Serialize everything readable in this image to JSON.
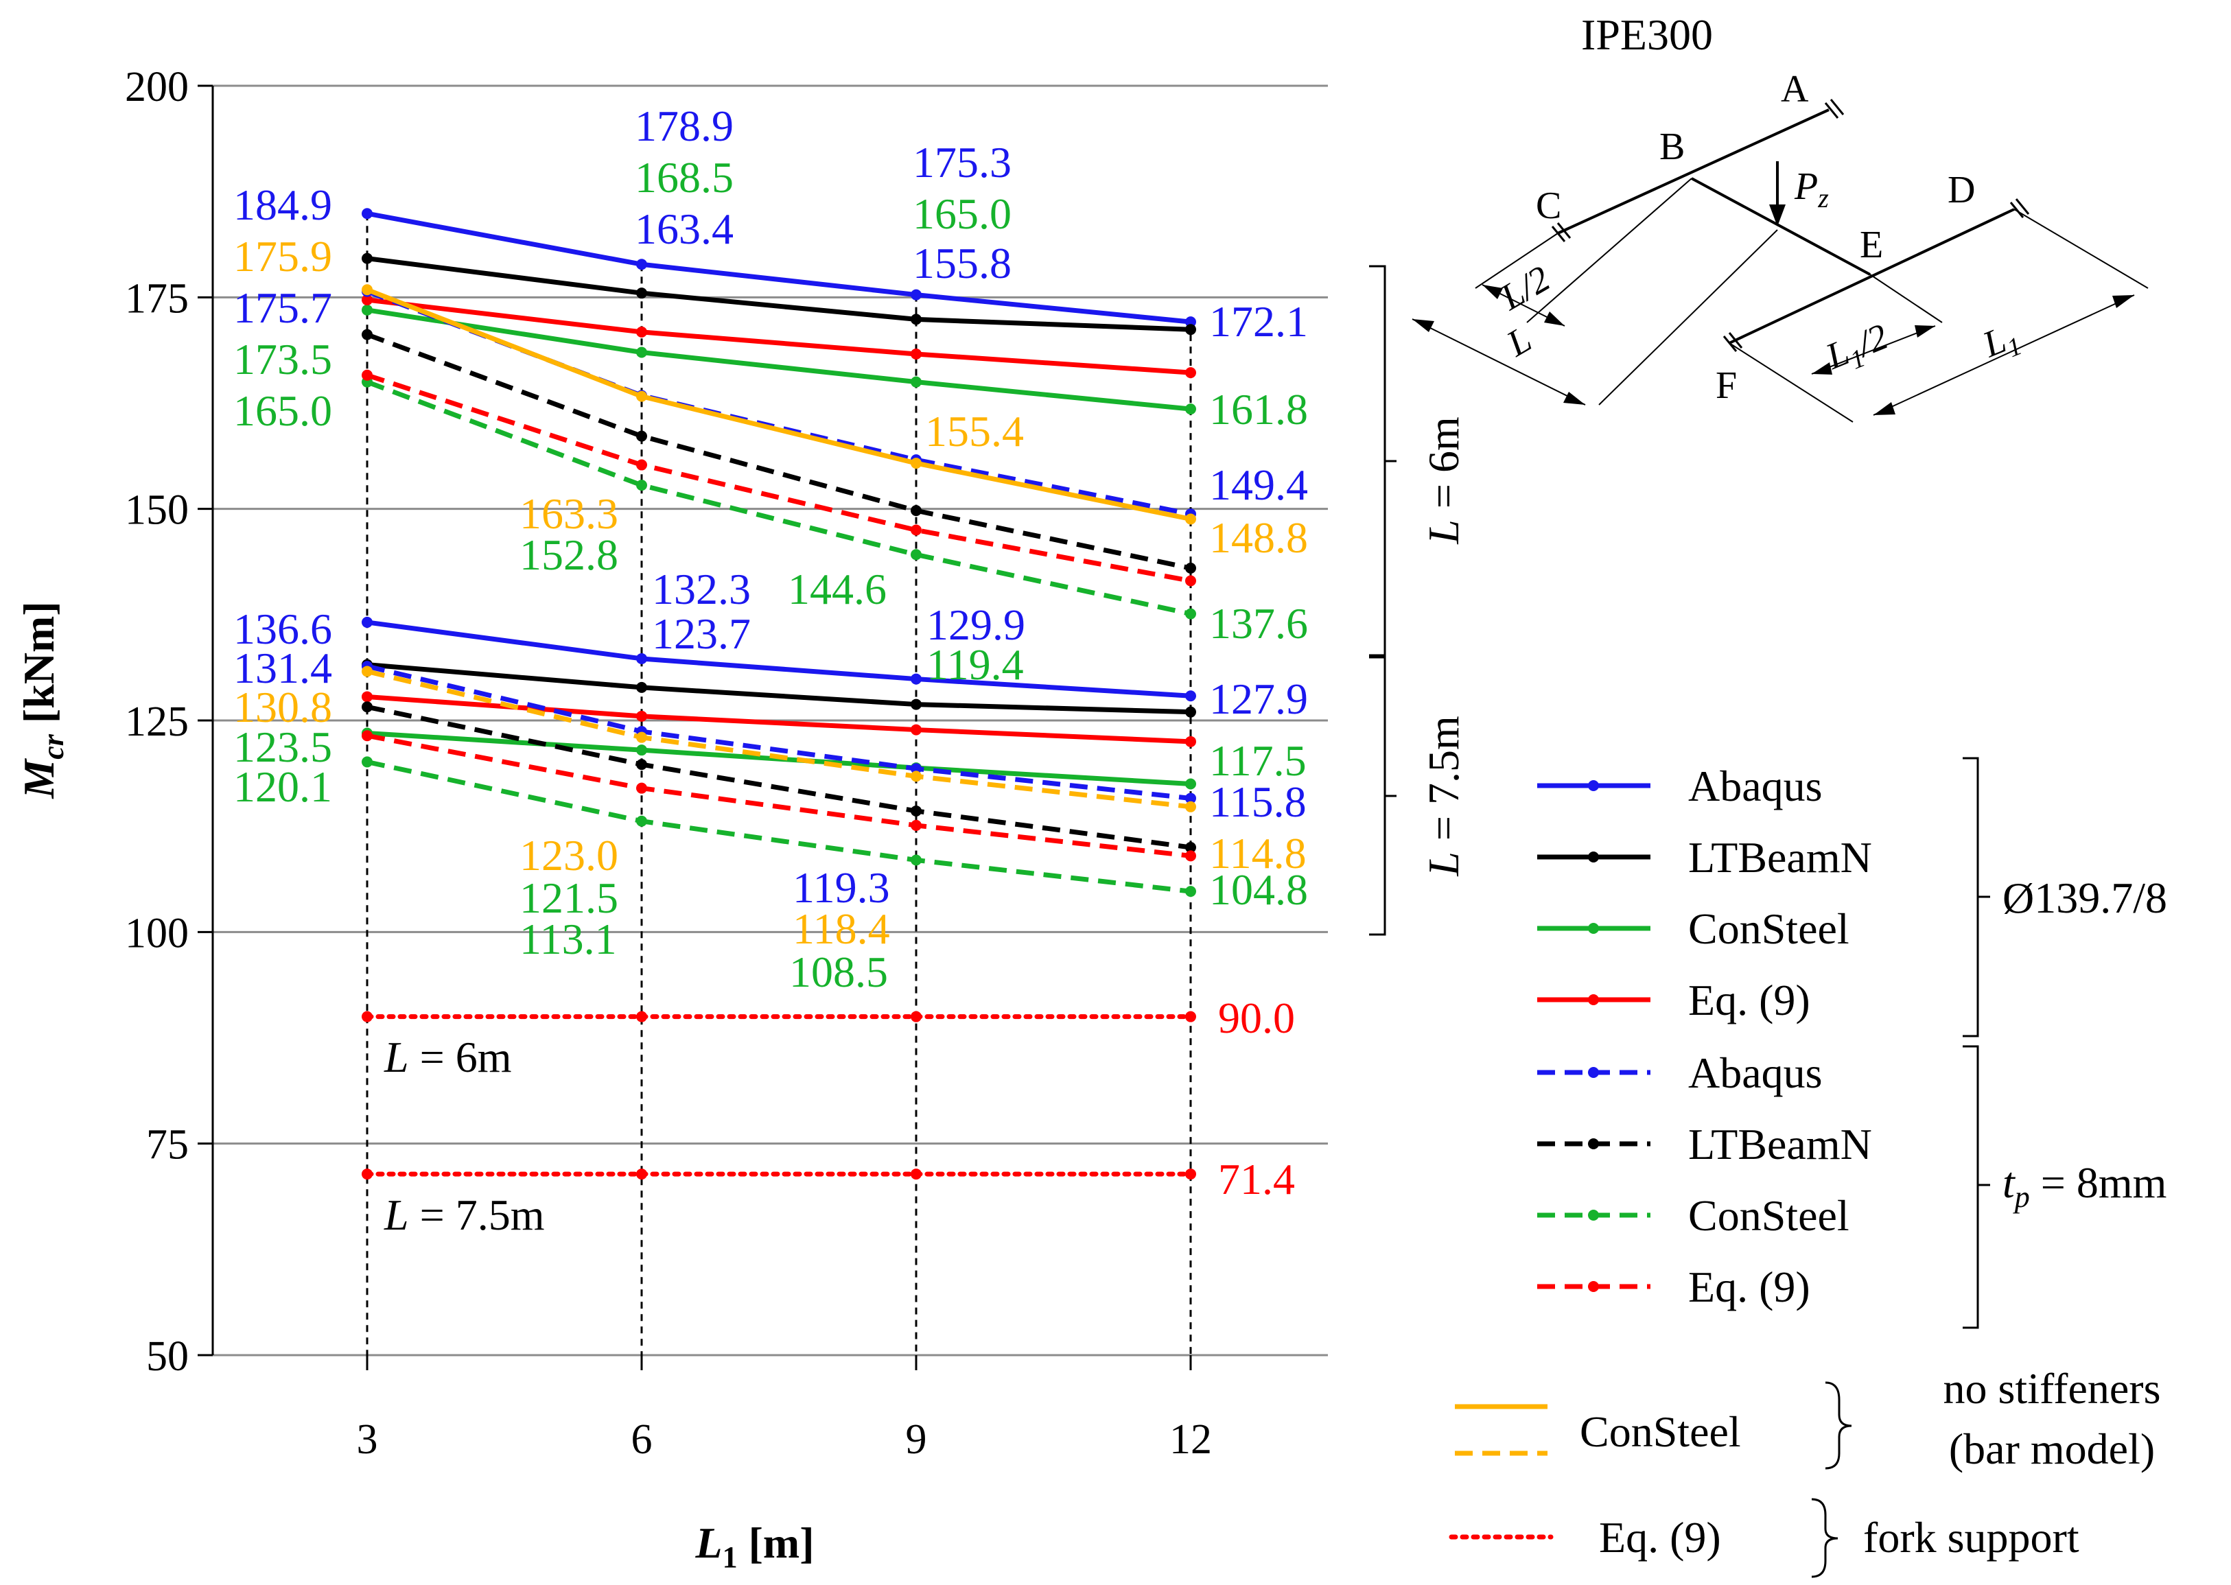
{
  "chart_data": {
    "type": "line",
    "ylabel_main": "M",
    "ylabel_sub": "cr",
    "ylabel_unit": "[kNm]",
    "xlabel_main": "L",
    "xlabel_sub": "1",
    "xlabel_unit": "[m]",
    "categories": [
      3,
      6,
      9,
      12
    ],
    "x_tick_labels": [
      "3",
      "6",
      "9",
      "12"
    ],
    "ylim": [
      50,
      200
    ],
    "y_ticks": [
      50,
      75,
      100,
      125,
      150,
      175,
      200
    ],
    "y_tick_labels": [
      "50",
      "75",
      "100",
      "125",
      "150",
      "175",
      "200"
    ],
    "grid": true,
    "colors": {
      "abaqus": "#1a17ee",
      "ltbeam": "#000000",
      "consteel": "#16b22c",
      "eq9": "#ff0000",
      "consteel_bar": "#ffb300"
    },
    "series": [
      {
        "name": "Abaqus Ø139.7/8 L=6m",
        "method": "abaqus",
        "style": "solid",
        "values": [
          184.9,
          178.9,
          175.3,
          172.1
        ]
      },
      {
        "name": "LTBeamN Ø139.7/8 L=6m",
        "method": "ltbeam",
        "style": "solid",
        "values": [
          179.6,
          175.5,
          172.4,
          171.2
        ]
      },
      {
        "name": "ConSteel Ø139.7/8 L=6m",
        "method": "consteel",
        "style": "solid",
        "values": [
          173.5,
          168.5,
          165.0,
          161.8
        ]
      },
      {
        "name": "Eq. (9) Ø139.7/8 L=6m",
        "method": "eq9",
        "style": "solid",
        "values": [
          174.7,
          170.9,
          168.3,
          166.1
        ]
      },
      {
        "name": "Abaqus tp=8mm L=6m",
        "method": "abaqus",
        "style": "dashed",
        "values": [
          175.7,
          163.4,
          155.8,
          149.4
        ]
      },
      {
        "name": "LTBeamN tp=8mm L=6m",
        "method": "ltbeam",
        "style": "dashed",
        "values": [
          170.6,
          158.6,
          149.8,
          143.0
        ]
      },
      {
        "name": "ConSteel tp=8mm L=6m",
        "method": "consteel",
        "style": "dashed",
        "values": [
          165.0,
          152.8,
          144.6,
          137.6
        ]
      },
      {
        "name": "Eq. (9) tp=8mm L=6m",
        "method": "eq9",
        "style": "dashed",
        "values": [
          165.8,
          155.2,
          147.5,
          141.5
        ]
      },
      {
        "name": "ConSteel no stiffeners L=6m",
        "method": "consteel_bar",
        "style": "solid",
        "values": [
          175.9,
          163.3,
          155.4,
          148.8
        ]
      },
      {
        "name": "Abaqus Ø139.7/8 L=7.5m",
        "method": "abaqus",
        "style": "solid",
        "values": [
          136.6,
          132.3,
          129.9,
          127.9
        ]
      },
      {
        "name": "LTBeamN Ø139.7/8 L=7.5m",
        "method": "ltbeam",
        "style": "solid",
        "values": [
          131.6,
          128.9,
          126.9,
          126.0
        ]
      },
      {
        "name": "ConSteel Ø139.7/8 L=7.5m",
        "method": "consteel",
        "style": "solid",
        "values": [
          123.5,
          121.5,
          119.4,
          117.5
        ]
      },
      {
        "name": "Eq. (9) Ø139.7/8 L=7.5m",
        "method": "eq9",
        "style": "solid",
        "values": [
          127.8,
          125.5,
          123.9,
          122.5
        ]
      },
      {
        "name": "Abaqus tp=8mm L=7.5m",
        "method": "abaqus",
        "style": "dashed",
        "values": [
          131.4,
          123.7,
          119.3,
          115.8
        ]
      },
      {
        "name": "LTBeamN tp=8mm L=7.5m",
        "method": "ltbeam",
        "style": "dashed",
        "values": [
          126.6,
          119.8,
          114.3,
          110.0
        ]
      },
      {
        "name": "ConSteel tp=8mm L=7.5m",
        "method": "consteel",
        "style": "dashed",
        "values": [
          120.1,
          113.1,
          108.5,
          104.8
        ]
      },
      {
        "name": "Eq. (9) tp=8mm L=7.5m",
        "method": "eq9",
        "style": "dashed",
        "values": [
          123.2,
          117.0,
          112.6,
          109.0
        ]
      },
      {
        "name": "ConSteel no stiffeners L=7.5m",
        "method": "consteel_bar",
        "style": "dashed",
        "values": [
          130.8,
          123.0,
          118.4,
          114.8
        ]
      },
      {
        "name": "Eq. (9) fork support L=6m",
        "method": "eq9",
        "style": "dotted",
        "values": [
          90.0,
          90.0,
          90.0,
          90.0
        ]
      },
      {
        "name": "Eq. (9) fork support L=7.5m",
        "method": "eq9",
        "style": "dotted",
        "values": [
          71.4,
          71.4,
          71.4,
          71.4
        ]
      }
    ],
    "data_labels": [
      {
        "text": "184.9",
        "method": "abaqus"
      },
      {
        "text": "175.9",
        "method": "consteel_bar"
      },
      {
        "text": "175.7",
        "method": "abaqus"
      },
      {
        "text": "173.5",
        "method": "consteel"
      },
      {
        "text": "165.0",
        "method": "consteel"
      },
      {
        "text": "178.9",
        "method": "abaqus"
      },
      {
        "text": "168.5",
        "method": "consteel"
      },
      {
        "text": "163.4",
        "method": "abaqus"
      },
      {
        "text": "175.3",
        "method": "abaqus"
      },
      {
        "text": "165.0",
        "method": "consteel"
      },
      {
        "text": "155.8",
        "method": "abaqus"
      },
      {
        "text": "172.1",
        "method": "abaqus"
      },
      {
        "text": "161.8",
        "method": "consteel"
      },
      {
        "text": "155.4",
        "method": "consteel_bar"
      },
      {
        "text": "149.4",
        "method": "abaqus"
      },
      {
        "text": "148.8",
        "method": "consteel_bar"
      },
      {
        "text": "163.3",
        "method": "consteel_bar"
      },
      {
        "text": "152.8",
        "method": "consteel"
      },
      {
        "text": "144.6",
        "method": "consteel"
      },
      {
        "text": "137.6",
        "method": "consteel"
      },
      {
        "text": "136.6",
        "method": "abaqus"
      },
      {
        "text": "131.4",
        "method": "abaqus"
      },
      {
        "text": "130.8",
        "method": "consteel_bar"
      },
      {
        "text": "123.5",
        "method": "consteel"
      },
      {
        "text": "120.1",
        "method": "consteel"
      },
      {
        "text": "132.3",
        "method": "abaqus"
      },
      {
        "text": "123.7",
        "method": "abaqus"
      },
      {
        "text": "129.9",
        "method": "abaqus"
      },
      {
        "text": "119.4",
        "method": "consteel"
      },
      {
        "text": "127.9",
        "method": "abaqus"
      },
      {
        "text": "117.5",
        "method": "consteel"
      },
      {
        "text": "115.8",
        "method": "abaqus"
      },
      {
        "text": "114.8",
        "method": "consteel_bar"
      },
      {
        "text": "104.8",
        "method": "consteel"
      },
      {
        "text": "123.0",
        "method": "consteel_bar"
      },
      {
        "text": "121.5",
        "method": "consteel"
      },
      {
        "text": "113.1",
        "method": "consteel"
      },
      {
        "text": "119.3",
        "method": "abaqus"
      },
      {
        "text": "118.4",
        "method": "consteel_bar"
      },
      {
        "text": "108.5",
        "method": "consteel"
      },
      {
        "text": "90.0",
        "method": "eq9"
      },
      {
        "text": "71.4",
        "method": "eq9"
      }
    ],
    "line_annotations": {
      "l6": {
        "pre": "L",
        "post": " = 6m"
      },
      "l75": {
        "pre": "L",
        "post": " = 7.5m"
      }
    },
    "group_brackets": {
      "l6": {
        "pre": "L",
        "post": " = 6m"
      },
      "l75": {
        "pre": "L",
        "post": " = 7.5m"
      }
    },
    "legend": {
      "group1": {
        "entries": [
          {
            "label": "Abaqus",
            "method": "abaqus",
            "style": "solid"
          },
          {
            "label": "LTBeamN",
            "method": "ltbeam",
            "style": "solid"
          },
          {
            "label": "ConSteel",
            "method": "consteel",
            "style": "solid"
          },
          {
            "label": "Eq. (9)",
            "method": "eq9",
            "style": "solid"
          }
        ],
        "label": "Ø139.7/8"
      },
      "group2": {
        "entries": [
          {
            "label": "Abaqus",
            "method": "abaqus",
            "style": "dashed"
          },
          {
            "label": "LTBeamN",
            "method": "ltbeam",
            "style": "dashed"
          },
          {
            "label": "ConSteel",
            "method": "consteel",
            "style": "dashed"
          },
          {
            "label": "Eq. (9)",
            "method": "eq9",
            "style": "dashed"
          }
        ],
        "label_pre": "t",
        "label_sub": "p",
        "label_post": " = 8mm"
      },
      "group3": {
        "entry_label": "ConSteel",
        "note_line1": "no stiffeners",
        "note_line2": "(bar model)"
      },
      "group4": {
        "entry_label": "Eq. (9)",
        "note": "fork support"
      }
    },
    "diagram": {
      "title": "IPE300",
      "nodes": [
        "A",
        "B",
        "C",
        "D",
        "E",
        "F"
      ],
      "load_main": "P",
      "load_sub": "z",
      "dim_half_span": "L/2",
      "dim_span": "L",
      "dim_half_span1_main": "L",
      "dim_half_span1_sub": "1",
      "dim_half_span1_post": "/2",
      "dim_span1_main": "L",
      "dim_span1_sub": "1"
    }
  }
}
